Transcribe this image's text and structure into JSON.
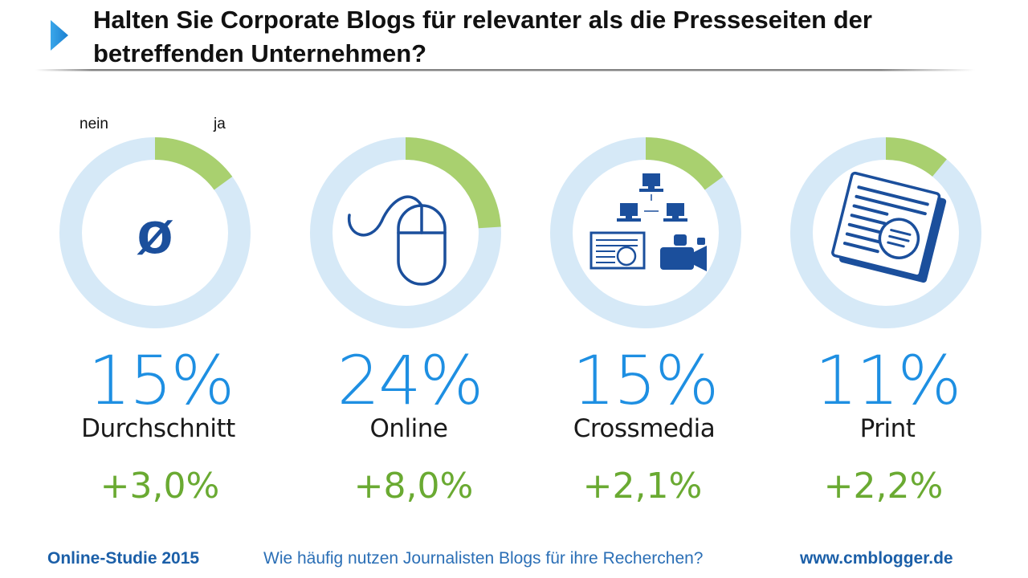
{
  "title": "Halten Sie Corporate Blogs für relevanter als die Presseseiten der betreffenden Unternehmen?",
  "legend": {
    "no_label": "nein",
    "yes_label": "ja"
  },
  "colors": {
    "ring": "#d6e9f7",
    "yes": "#a9d06f",
    "percent": "#1e8fe2",
    "change": "#6aaa32",
    "icon": "#1b4f9c",
    "footer": "#1b5fa8"
  },
  "chart_data": {
    "type": "pie",
    "title": "Halten Sie Corporate Blogs für relevanter als die Presseseiten der betreffenden Unternehmen?",
    "slice_labels": [
      "nein",
      "ja"
    ],
    "categories": [
      "Durchschnitt",
      "Online",
      "Crossmedia",
      "Print"
    ],
    "series": [
      {
        "name": "ja",
        "values": [
          15,
          24,
          15,
          11
        ]
      },
      {
        "name": "nein",
        "values": [
          85,
          76,
          85,
          89
        ]
      }
    ],
    "items": [
      {
        "category": "Durchschnitt",
        "percent": 15,
        "percent_label": "15%",
        "change": 3.0,
        "change_label": "+3,0%",
        "icon": "average-symbol-icon",
        "symbol": "ø"
      },
      {
        "category": "Online",
        "percent": 24,
        "percent_label": "24%",
        "change": 8.0,
        "change_label": "+8,0%",
        "icon": "computer-mouse-icon"
      },
      {
        "category": "Crossmedia",
        "percent": 15,
        "percent_label": "15%",
        "change": 2.1,
        "change_label": "+2,1%",
        "icon": "crossmedia-network-icon"
      },
      {
        "category": "Print",
        "percent": 11,
        "percent_label": "11%",
        "change": 2.2,
        "change_label": "+2,2%",
        "icon": "newspaper-icon"
      }
    ]
  },
  "footer": {
    "left": "Online-Studie 2015",
    "middle": "Wie häufig nutzen Journalisten Blogs für ihre Recherchen?",
    "right": "www.cmblogger.de"
  }
}
